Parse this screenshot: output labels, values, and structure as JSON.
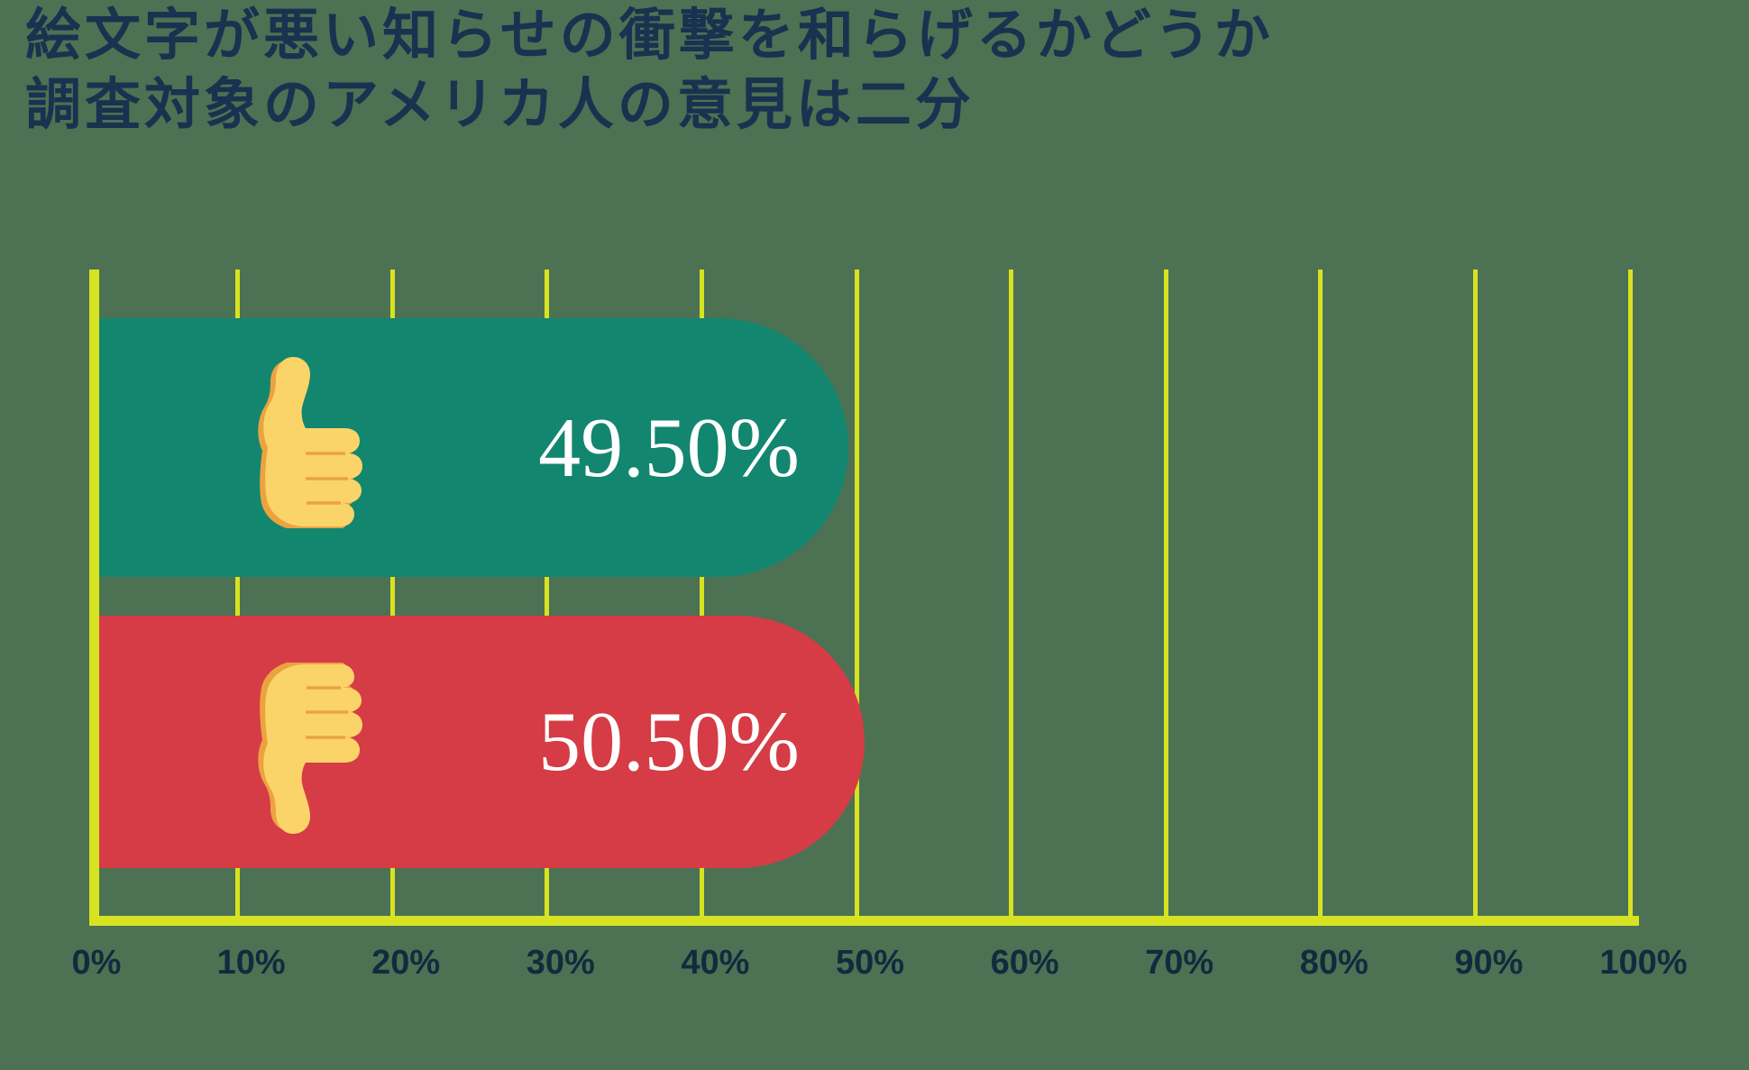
{
  "title": {
    "line1": "絵文字が悪い知らせの衝撃を和らげるかどうか",
    "line2": "調査対象のアメリカ人の意見は二分"
  },
  "chart_data": {
    "type": "bar",
    "orientation": "horizontal",
    "title": "絵文字が悪い知らせの衝撃を和らげるかどうか 調査対象のアメリカ人の意見は二分",
    "series": [
      {
        "name": "thumbs-up",
        "icon": "thumbs-up-icon",
        "value": 49.5,
        "label": "49.50%",
        "color": "#13866F"
      },
      {
        "name": "thumbs-down",
        "icon": "thumbs-down-icon",
        "value": 50.5,
        "label": "50.50%",
        "color": "#D53C45"
      }
    ],
    "x_axis": {
      "min": 0,
      "max": 100,
      "step": 10,
      "tick_labels": [
        "0%",
        "10%",
        "20%",
        "30%",
        "40%",
        "50%",
        "60%",
        "70%",
        "80%",
        "90%",
        "100%"
      ]
    },
    "grid": "vertical-gridlines",
    "legend": "none"
  },
  "colors": {
    "background": "#4C7253",
    "gridline": "#D7E321",
    "axis_line": "#D7E321",
    "tick_label": "#132A3E",
    "title_text": "#1A3150",
    "value_text": "#FFFFFF",
    "thumb_fill": "#FBD469",
    "thumb_shade": "#EBA33F"
  }
}
